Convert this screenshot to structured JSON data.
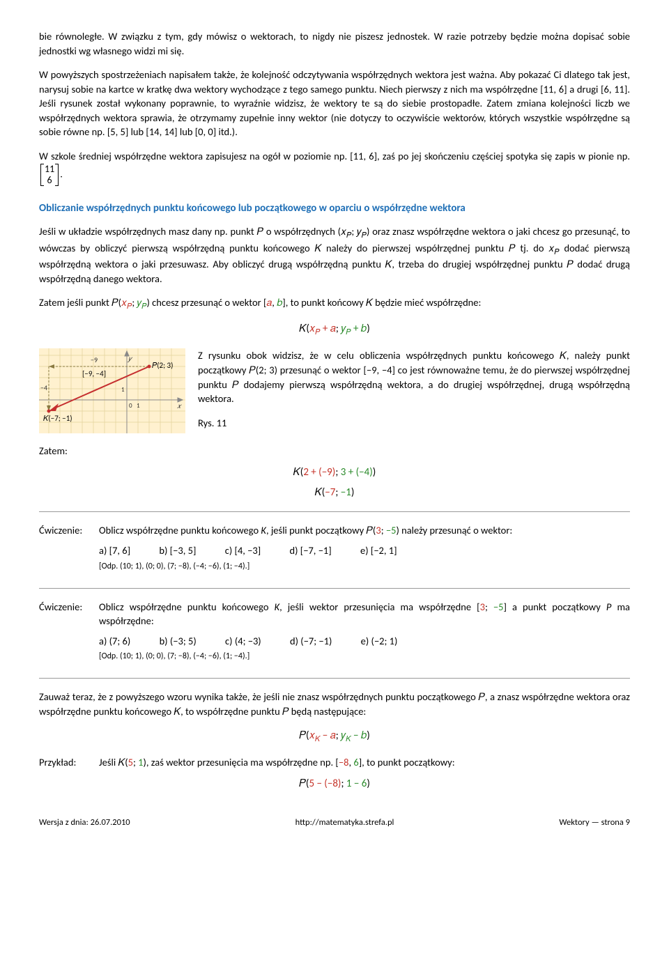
{
  "para1": "bie równoległe. W związku z tym, gdy mówisz o wektorach, to nigdy nie piszesz jednostek. W razie potrzeby będzie można dopisać sobie jednostki wg własnego widzi mi się.",
  "para2": "W powyższych spostrzeżeniach napisałem także, że kolejność odczytywania współrzędnych wektora jest ważna. Aby pokazać Ci dlatego tak jest, narysuj sobie na kartce w kratkę dwa wektory wychodzące z tego samego punktu. Niech pierwszy z nich ma współrzędne [11, 6] a drugi [6, 11]. Jeśli rysunek został wykonany poprawnie, to wyraźnie widzisz, że wektory te są do siebie prostopadłe. Zatem zmiana kolejności liczb we współrzędnych wektora sprawia, że otrzymamy zupełnie inny wektor (nie dotyczy to oczywiście wektorów, których wszystkie współrzędne są sobie równe np. [5, 5] lub [14, 14] lub [0, 0] itd.).",
  "para3_a": "W szkole średniej współrzędne wektora zapisujesz na ogół w poziomie np. [11, 6], zaś po jej skończeniu częściej spotyka się zapis w pionie np. ",
  "matrix_top": "11",
  "matrix_bot": "6",
  "para3_b": ".",
  "heading1": "Obliczanie współrzędnych punktu końcowego lub początkowego w oparciu o współrzędne wektora",
  "para4_html": "Jeśli w układzie współrzędnych masz dany np. punkt 𝑃 o współrzędnych (𝑥<span class='sub'>𝑃</span>; 𝑦<span class='sub'>𝑃</span>) oraz znasz współrzędne wektora o jaki chcesz go przesunąć, to wówczas by obliczyć pierwszą współrzędną punktu końcowego 𝐾 należy do pierwszej współrzędnej punktu 𝑃 tj. do 𝑥<span class='sub'>𝑃</span> dodać pierwszą współrzędną wektora o jaki przesuwasz. Aby obliczyć drugą współrzędną punktu 𝐾, trzeba do drugiej współrzędnej punktu 𝑃 dodać drugą współrzędną danego wektora.",
  "para5_html": "Zatem jeśli punkt 𝑃(<span class='red'>𝑥<span class=\"sub\">𝑃</span></span>; <span class='green'>𝑦<span class=\"sub\">𝑃</span></span>) chcesz przesunąć o wektor [<span class='red'>𝑎</span>, <span class='green'>𝑏</span>], to punkt końcowy 𝐾 będzie mieć współrzędne:",
  "formula1_html": "𝐾(<span class='red'>𝑥<span class=\"sub\">𝑃</span> + 𝑎</span>; <span class='green'>𝑦<span class=\"sub\">𝑃</span> + 𝑏</span>)",
  "fig_text": "Z rysunku obok widzisz, że w celu obliczenia współrzędnych punktu końcowego 𝐾, należy punkt początkowy 𝑃(2; 3) przesunąć o wektor [−9, −4] co jest równoważne temu, że do pierwszej współrzędnej punktu 𝑃 dodajemy pierwszą współrzędną wektora, a do drugiej współrzędnej, drugą współrzędną wektora.",
  "fig_caption": "Rys. 11",
  "fig": {
    "bg": "#fff1cf",
    "grid": "#e3d29a",
    "axis": "#999999",
    "point_color": "#c52e2e",
    "vector_red": "#c52e2e",
    "dashed": "#8a7a42",
    "label_P": "𝑃(2; 3)",
    "label_vec": "[−9, −4]",
    "label_K": "𝐾(−7; −1)",
    "label_m9": "−9",
    "label_m4": "−4",
    "label_1x": "1",
    "label_1y": "1",
    "label_0": "0",
    "label_x": "𝑥",
    "label_y": "𝑦"
  },
  "zatem": "Zatem:",
  "formula2a_html": "𝐾(<span class='red'>2 + (−9)</span>; <span class='green'>3 + (−4)</span>)",
  "formula2b_html": "𝐾(<span class='red'>−7</span>; <span class='green'>−1</span>)",
  "ex_label": "Ćwiczenie:",
  "ex1_text_html": "Oblicz współrzędne punktu końcowego <i>K</i>, jeśli punkt początkowy 𝑃(<span class='red'>3</span>; <span class='green'>−5</span>) należy przesunąć o wektor:",
  "ex1_opts": {
    "a": "a) [7, 6]",
    "b": "b) [−3, 5]",
    "c": "c) [4, −3]",
    "d": "d) [−7, −1]",
    "e": "e) [−2, 1]"
  },
  "ex1_ans": "[Odp. (10; 1), (0; 0), (7; −8), (−4; −6), (1; −4).]",
  "ex2_text_html": "Oblicz współrzędne punktu końcowego <i>K</i>, jeśli wektor przesunięcia ma współrzędne [<span class='red'>3</span>; <span class='green'>−5</span>] a punkt początkowy <i>P</i> ma współrzędne:",
  "ex2_opts": {
    "a": "a) (7; 6)",
    "b": "b) (−3; 5)",
    "c": "c) (4;  −3)",
    "d": "d) (−7; −1)",
    "e": "e) (−2; 1)"
  },
  "ex2_ans": "[Odp. (10; 1), (0; 0), (7; −8), (−4; −6), (1; −4).]",
  "para6": "Zauważ teraz, że z powyższego wzoru wynika także, że jeśli nie znasz współrzędnych punktu początkowego 𝑃, a znasz współrzędne wektora oraz współrzędne punktu końcowego 𝐾, to współrzędne punktu 𝑃 będą następujące:",
  "formula3_html": "𝑃(<span class='red'>𝑥<span class=\"sub\">𝐾</span> − 𝑎</span>; <span class='green'>𝑦<span class=\"sub\">𝐾</span> − 𝑏</span>)",
  "przyklad_label": "Przykład:",
  "przyklad_text_html": "Jeśli 𝐾(<span class='red'>5</span>; <span class='green'>1</span>), zaś wektor przesunięcia ma współrzędne np. [<span class='red'>−8</span>, <span class='green'>6</span>], to punkt początkowy:",
  "formula4_html": "𝑃(<span class='red'>5 − (−8)</span>; <span class='green'>1 − 6</span>)",
  "footer": {
    "left": "Wersja z dnia: 26.07.2010",
    "center": "http://matematyka.strefa.pl",
    "right": "Wektory — strona 9"
  }
}
